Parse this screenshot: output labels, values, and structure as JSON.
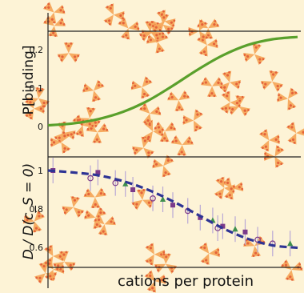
{
  "colors": {
    "background": "#fdf3d6",
    "protein_fill": "#f5a85c",
    "protein_dot": "#e4633a",
    "binding_curve": "#5aa02c",
    "diffusion_curve": "#2e3494",
    "axis": "#222222",
    "error_bar": "#b9a8d6",
    "marker_purple": "#7b3a8a",
    "marker_green": "#3f8f4e",
    "marker_blue": "#2c3e7a"
  },
  "chart_data": [
    {
      "type": "line",
      "panel": "top",
      "ylabel": "P[binding]",
      "yticks": [
        0,
        0.1,
        0.2
      ],
      "ylim": [
        -0.02,
        0.265
      ],
      "xlim": [
        0,
        1
      ],
      "grid": false,
      "series": [
        {
          "x": [
            0,
            0.1,
            0.2,
            0.3,
            0.4,
            0.5,
            0.6,
            0.7,
            0.8,
            0.9,
            1.0
          ],
          "values": [
            0.003,
            0.008,
            0.019,
            0.038,
            0.067,
            0.106,
            0.148,
            0.185,
            0.212,
            0.227,
            0.233
          ]
        }
      ]
    },
    {
      "type": "scatter",
      "panel": "bottom",
      "ylabel": "D / D(c_S = 0)",
      "xlabel": "cations per protein",
      "yticks": [
        0.6,
        0.8,
        1.0
      ],
      "ylim": [
        0.52,
        1.05
      ],
      "xlim": [
        0,
        1
      ],
      "grid": false,
      "fit": {
        "x": [
          0,
          0.1,
          0.2,
          0.3,
          0.4,
          0.5,
          0.6,
          0.7,
          0.8,
          0.9,
          1.0
        ],
        "values": [
          1.0,
          0.99,
          0.975,
          0.945,
          0.9,
          0.84,
          0.77,
          0.7,
          0.645,
          0.61,
          0.598
        ]
      },
      "series": [
        {
          "marker": "square",
          "x": [
            0.02,
            0.2,
            0.34,
            0.5,
            0.61,
            0.7,
            0.79
          ],
          "values": [
            1.0,
            0.99,
            0.9,
            0.82,
            0.755,
            0.71,
            0.68
          ]
        },
        {
          "marker": "circle",
          "x": [
            0.17,
            0.27,
            0.42,
            0.56,
            0.68,
            0.84,
            0.9
          ],
          "values": [
            0.96,
            0.935,
            0.855,
            0.79,
            0.7,
            0.64,
            0.62
          ]
        },
        {
          "marker": "triangle",
          "x": [
            0.31,
            0.46,
            0.66,
            0.75,
            0.97
          ],
          "values": [
            0.93,
            0.85,
            0.74,
            0.695,
            0.62
          ]
        }
      ]
    }
  ]
}
